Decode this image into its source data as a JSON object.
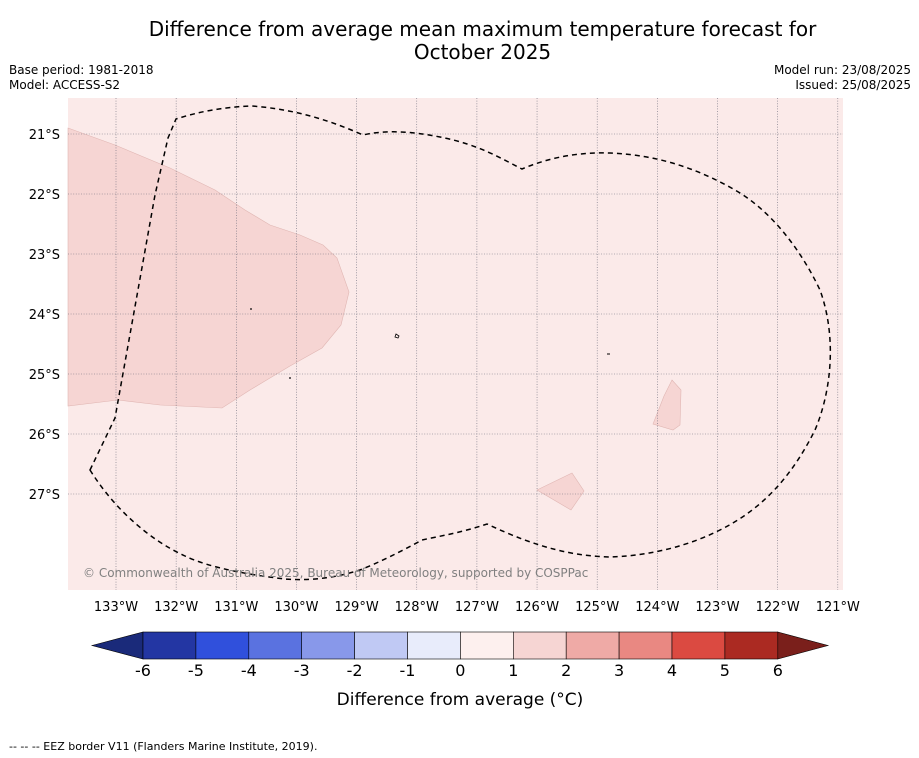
{
  "header": {
    "title_line1": "Difference from average mean maximum temperature forecast for",
    "title_line2": "October 2025",
    "base_period": "Base period: 1981-2018",
    "model": "Model: ACCESS-S2",
    "model_run": "Model run: 23/08/2025",
    "issued": "Issued: 25/08/2025"
  },
  "map": {
    "copyright": "© Commonwealth of Australia 2025, Bureau of Meteorology, supported by COSPPac",
    "lat_labels": [
      "21°S",
      "22°S",
      "23°S",
      "24°S",
      "25°S",
      "26°S",
      "27°S"
    ],
    "lon_labels": [
      "133°W",
      "132°W",
      "131°W",
      "130°W",
      "129°W",
      "128°W",
      "127°W",
      "126°W",
      "125°W",
      "124°W",
      "123°W",
      "122°W",
      "121°W"
    ],
    "background_color": "#fbeae9",
    "anomaly_region_color": "#f6d5d3"
  },
  "colorbar": {
    "ticks": [
      "-6",
      "-5",
      "-4",
      "-3",
      "-2",
      "-1",
      "0",
      "1",
      "2",
      "3",
      "4",
      "5",
      "6"
    ],
    "label": "Difference from average (°C)",
    "colors": [
      "#2336a3",
      "#3050dc",
      "#5a72e0",
      "#8898ea",
      "#c0c9f4",
      "#e8ecfb",
      "#fdf0ee",
      "#f6d5d3",
      "#efaaa6",
      "#e98882",
      "#db4a41",
      "#ab2a22"
    ],
    "under_color": "#1a2a7a",
    "over_color": "#7a1f1b"
  },
  "footer": {
    "legend": "-- -- -- EEZ border V11 (Flanders Marine Institute, 2019)."
  }
}
